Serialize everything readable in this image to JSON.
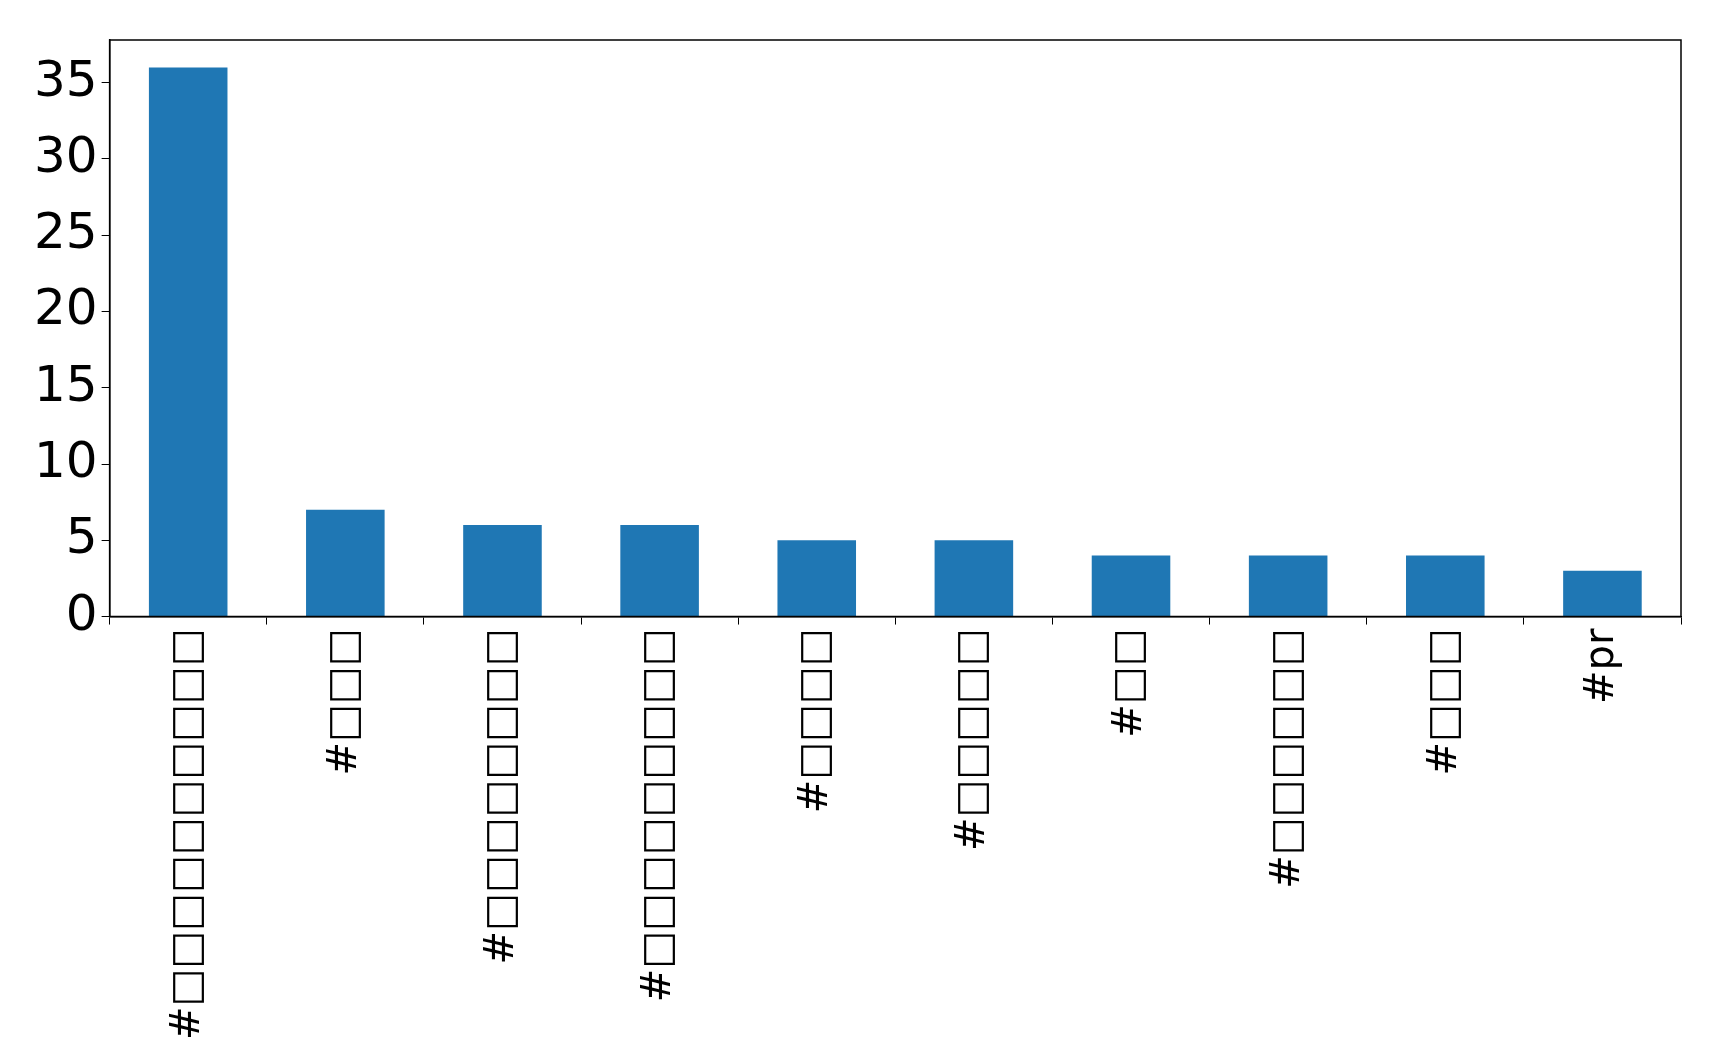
{
  "chart_data": {
    "type": "bar",
    "categories": [
      "#□□□□□□□□□□",
      "#□□□",
      "#□□□□□□□□",
      "#□□□□□□□□□",
      "#□□□□",
      "#□□□□□",
      "#□□",
      "#□□□□□□",
      "#□□□",
      "#pr"
    ],
    "values": [
      36,
      7,
      6,
      6,
      5,
      5,
      4,
      4,
      4,
      3
    ],
    "color": "#1f77b4",
    "ylim": [
      0,
      37.8
    ],
    "yticks": [
      0,
      5,
      10,
      15,
      20,
      25,
      30,
      35
    ],
    "grid": false,
    "legend": false
  }
}
